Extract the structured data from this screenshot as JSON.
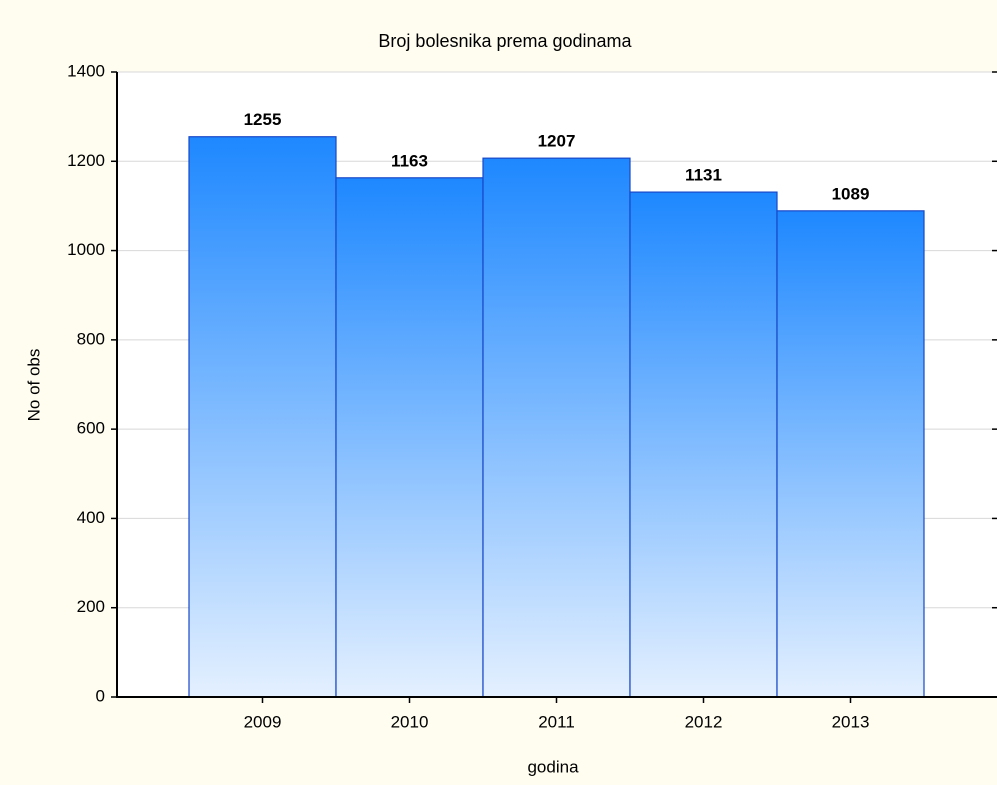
{
  "chart_data": {
    "type": "bar",
    "title": "Broj bolesnika prema godinama",
    "x_label": "godina",
    "y_label": "No of obs",
    "categories": [
      "2009",
      "2010",
      "2011",
      "2012",
      "2013"
    ],
    "values": [
      1255,
      1163,
      1207,
      1131,
      1089
    ],
    "color": "#1e88ff",
    "ylim": [
      0,
      1400
    ],
    "yticks": [
      0,
      200,
      400,
      600,
      800,
      1000,
      1200,
      1400
    ],
    "grid": true
  }
}
